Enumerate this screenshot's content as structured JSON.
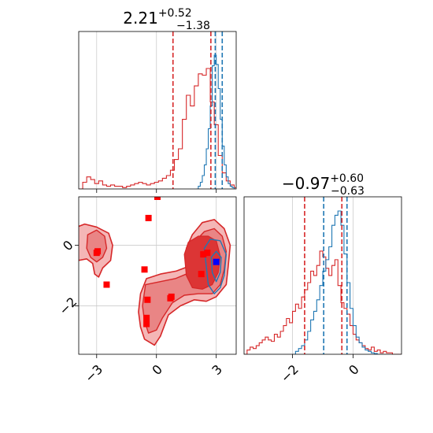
{
  "colors": {
    "red": "#d62728",
    "red_fill_light": "#f4b6b6",
    "red_fill_mid": "#e98585",
    "red_fill_dark": "#dc3535",
    "blue": "#1f77b4",
    "marker_red": "#ff0000",
    "marker_blue": "#0000ff",
    "grid": "#cccccc"
  },
  "chart_data": [
    {
      "type": "histogram",
      "panel": "marginal-param-1",
      "title_value": "2.21",
      "title_upper": "+0.52",
      "title_lower": "−1.38",
      "xlim": [
        -3.9,
        4.0
      ],
      "grid": true,
      "quantiles_red": [
        0.83,
        2.73
      ],
      "quantiles_blue": [
        2.95,
        3.3
      ],
      "series": [
        {
          "color": "red",
          "x_start": -3.9,
          "bin_width": 0.2,
          "values": [
            0,
            0.05,
            0.09,
            0.07,
            0.04,
            0.06,
            0.03,
            0.02,
            0.03,
            0.02,
            0.02,
            0.01,
            0.02,
            0.03,
            0.04,
            0.05,
            0.04,
            0.03,
            0.04,
            0.05,
            0.06,
            0.08,
            0.1,
            0.14,
            0.22,
            0.3,
            0.52,
            0.7,
            0.62,
            0.77,
            0.86,
            0.85,
            0.9,
            0.65,
            0.48,
            0.25,
            0.12,
            0.06,
            0.03,
            0.01
          ]
        },
        {
          "color": "blue",
          "x_start": 2.0,
          "bin_width": 0.1,
          "values": [
            0,
            0.02,
            0.05,
            0.1,
            0.18,
            0.3,
            0.45,
            0.62,
            0.92,
            1.0,
            0.93,
            0.75,
            0.52,
            0.32,
            0.18,
            0.09,
            0.04,
            0.02,
            0.01,
            0
          ]
        }
      ]
    },
    {
      "type": "scatter-contour",
      "panel": "joint",
      "xlim": [
        -3.9,
        4.0
      ],
      "ylim": [
        -3.6,
        1.6
      ],
      "x_ticks": [
        -3,
        0,
        3
      ],
      "x_tick_labels": [
        "−3",
        "0",
        "3"
      ],
      "y_ticks": [
        -2,
        0
      ],
      "y_tick_labels": [
        "−2",
        "0"
      ],
      "grid": true,
      "markers_red": [
        [
          0.05,
          1.6
        ],
        [
          -0.4,
          0.9
        ],
        [
          -2.95,
          -0.2
        ],
        [
          -3.0,
          -0.25
        ],
        [
          -2.5,
          -1.3
        ],
        [
          -0.6,
          -0.8
        ],
        [
          -0.45,
          -1.8
        ],
        [
          -0.5,
          -2.4
        ],
        [
          -0.5,
          -2.6
        ],
        [
          0.7,
          -1.75
        ],
        [
          0.75,
          -1.7
        ],
        [
          2.25,
          -0.95
        ],
        [
          2.55,
          -0.25
        ],
        [
          2.35,
          -0.3
        ]
      ],
      "markers_blue": [
        [
          3.0,
          -0.55
        ]
      ],
      "red_contours": {
        "outer": [
          [
            [
              -4.0,
              0.6
            ],
            [
              -3.6,
              0.7
            ],
            [
              -3.0,
              0.6
            ],
            [
              -2.4,
              0.4
            ],
            [
              -2.2,
              0.0
            ],
            [
              -2.3,
              -0.5
            ],
            [
              -2.7,
              -0.75
            ],
            [
              -2.9,
              -1.05
            ],
            [
              -3.1,
              -0.95
            ],
            [
              -3.2,
              -0.6
            ],
            [
              -3.5,
              -0.45
            ],
            [
              -3.9,
              -0.5
            ],
            [
              -4.0,
              -0.3
            ]
          ],
          [
            [
              -0.5,
              -1.1
            ],
            [
              0.2,
              -0.95
            ],
            [
              1.0,
              -0.85
            ],
            [
              1.6,
              -0.7
            ],
            [
              1.5,
              -0.1
            ],
            [
              1.8,
              0.35
            ],
            [
              2.3,
              0.75
            ],
            [
              2.9,
              0.85
            ],
            [
              3.4,
              0.55
            ],
            [
              3.7,
              0.0
            ],
            [
              3.6,
              -0.7
            ],
            [
              3.5,
              -1.3
            ],
            [
              3.0,
              -1.7
            ],
            [
              2.5,
              -1.85
            ],
            [
              1.9,
              -1.8
            ],
            [
              1.2,
              -2.0
            ],
            [
              0.6,
              -2.3
            ],
            [
              0.2,
              -3.0
            ],
            [
              -0.1,
              -3.3
            ],
            [
              -0.6,
              -3.1
            ],
            [
              -0.8,
              -2.7
            ],
            [
              -0.9,
              -2.2
            ],
            [
              -0.8,
              -1.6
            ]
          ]
        ],
        "middle": [
          [
            [
              -3.45,
              0.35
            ],
            [
              -3.0,
              0.5
            ],
            [
              -2.6,
              0.3
            ],
            [
              -2.5,
              -0.1
            ],
            [
              -2.7,
              -0.4
            ],
            [
              -3.0,
              -0.55
            ],
            [
              -3.3,
              -0.4
            ],
            [
              -3.5,
              -0.1
            ]
          ],
          [
            [
              -0.55,
              -1.3
            ],
            [
              0.2,
              -1.2
            ],
            [
              0.95,
              -1.1
            ],
            [
              1.5,
              -0.95
            ],
            [
              1.6,
              -0.4
            ],
            [
              1.9,
              0.1
            ],
            [
              2.4,
              0.45
            ],
            [
              2.9,
              0.55
            ],
            [
              3.3,
              0.3
            ],
            [
              3.5,
              -0.2
            ],
            [
              3.4,
              -0.8
            ],
            [
              3.2,
              -1.3
            ],
            [
              2.8,
              -1.6
            ],
            [
              2.1,
              -1.6
            ],
            [
              1.4,
              -1.65
            ],
            [
              0.8,
              -1.9
            ],
            [
              0.3,
              -2.4
            ],
            [
              0.0,
              -2.8
            ],
            [
              -0.4,
              -2.9
            ],
            [
              -0.6,
              -2.5
            ],
            [
              -0.7,
              -2.0
            ]
          ]
        ],
        "inner": [
          [
            [
              1.4,
              -0.3
            ],
            [
              1.6,
              0.1
            ],
            [
              2.1,
              0.3
            ],
            [
              2.6,
              0.3
            ],
            [
              3.0,
              0.15
            ],
            [
              3.2,
              -0.35
            ],
            [
              3.1,
              -0.9
            ],
            [
              2.8,
              -1.3
            ],
            [
              2.3,
              -1.45
            ],
            [
              1.8,
              -1.4
            ],
            [
              1.5,
              -1.0
            ]
          ]
        ]
      },
      "blue_contours": [
        [
          [
            2.4,
            -0.1
          ],
          [
            2.7,
            0.2
          ],
          [
            3.2,
            0.15
          ],
          [
            3.5,
            -0.3
          ],
          [
            3.4,
            -1.0
          ],
          [
            3.2,
            -1.4
          ],
          [
            2.9,
            -1.6
          ],
          [
            2.6,
            -1.3
          ],
          [
            2.5,
            -0.7
          ]
        ],
        [
          [
            2.75,
            -0.4
          ],
          [
            3.0,
            -0.2
          ],
          [
            3.25,
            -0.4
          ],
          [
            3.2,
            -0.9
          ],
          [
            3.0,
            -1.2
          ],
          [
            2.8,
            -0.9
          ]
        ]
      ]
    },
    {
      "type": "histogram",
      "panel": "marginal-param-2",
      "title_value": "−0.97",
      "title_upper": "+0.60",
      "title_lower": "−0.63",
      "xlim": [
        -3.6,
        1.6
      ],
      "x_ticks": [
        -2,
        0
      ],
      "x_tick_labels": [
        "−2",
        "0"
      ],
      "grid": true,
      "quantiles_red": [
        -1.6,
        -0.37
      ],
      "quantiles_blue": [
        -0.97,
        -0.2
      ],
      "series": [
        {
          "color": "red",
          "x_start": -3.6,
          "bin_width": 0.1,
          "values": [
            0,
            0.03,
            0.05,
            0.04,
            0.06,
            0.08,
            0.1,
            0.12,
            0.1,
            0.09,
            0.14,
            0.12,
            0.16,
            0.2,
            0.25,
            0.22,
            0.3,
            0.35,
            0.32,
            0.4,
            0.45,
            0.5,
            0.58,
            0.55,
            0.62,
            0.72,
            0.68,
            0.6,
            0.55,
            0.62,
            0.66,
            0.48,
            0.36,
            0.32,
            0.28,
            0.2,
            0.14,
            0.1,
            0.08,
            0.06,
            0.04,
            0.03,
            0.05,
            0.02,
            0.03,
            0.01,
            0.02,
            0.01,
            0.01,
            0,
            0,
            0
          ]
        },
        {
          "color": "blue",
          "x_start": -2.0,
          "bin_width": 0.1,
          "values": [
            0,
            0.02,
            0.04,
            0.06,
            0.1,
            0.16,
            0.24,
            0.3,
            0.38,
            0.48,
            0.58,
            0.66,
            0.75,
            0.9,
            0.97,
            1.0,
            0.9,
            0.7,
            0.5,
            0.32,
            0.2,
            0.12,
            0.08,
            0.05,
            0.03,
            0.02,
            0.01,
            0.005,
            0,
            0
          ]
        }
      ]
    }
  ]
}
